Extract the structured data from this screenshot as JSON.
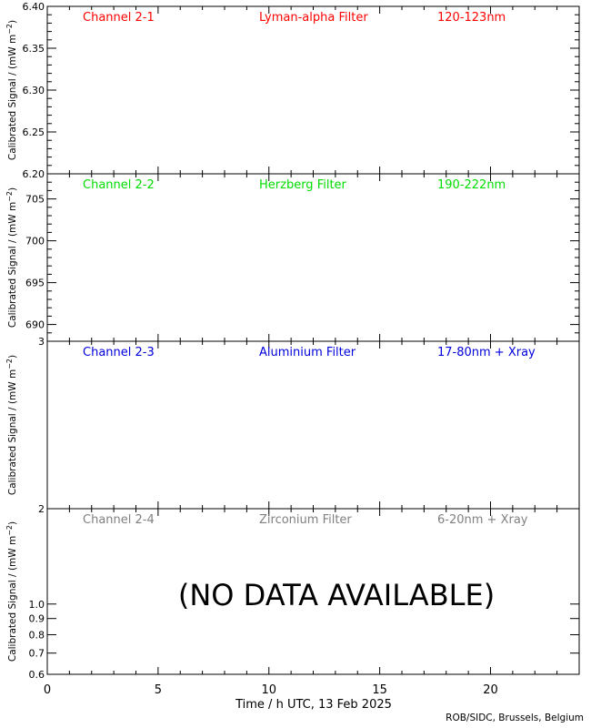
{
  "x_axis": {
    "label": "Time / h UTC, 13 Feb 2025",
    "range": [
      0,
      24
    ],
    "ticks": [
      0,
      5,
      10,
      15,
      20
    ],
    "tick_labels": [
      "0",
      "5",
      "10",
      "15",
      "20"
    ],
    "minor_step": 1
  },
  "y_label": "Calibrated Signal / (mW m",
  "y_label_sup": "−2",
  "y_label_end": ")",
  "credit": "ROB/SIDC, Brussels, Belgium",
  "no_data_text": "(NO DATA AVAILABLE)",
  "chart_data": [
    {
      "type": "line",
      "channel": "Channel 2-1",
      "filter": "Lyman-alpha Filter",
      "band": "120-123nm",
      "color": "#ff0000",
      "ylim": [
        6.2,
        6.4
      ],
      "yscale": "linear",
      "yticks": [
        6.2,
        6.25,
        6.3,
        6.35,
        6.4
      ],
      "ytick_labels": [
        "6.20",
        "6.25",
        "6.30",
        "6.35",
        "6.40"
      ],
      "yminor_step": 0.01,
      "series": []
    },
    {
      "type": "line",
      "channel": "Channel 2-2",
      "filter": "Herzberg Filter",
      "band": "190-222nm",
      "color": "#00dd00",
      "ylim": [
        688,
        708
      ],
      "yscale": "linear",
      "yticks": [
        690,
        695,
        700,
        705
      ],
      "ytick_labels": [
        "690",
        "695",
        "700",
        "705"
      ],
      "yminor_step": 1,
      "series": []
    },
    {
      "type": "line",
      "channel": "Channel 2-3",
      "filter": "Aluminium Filter",
      "band": "17-80nm + Xray",
      "color": "#0000dd",
      "ylim": [
        2,
        3
      ],
      "yscale": "linear",
      "yticks": [
        2,
        3
      ],
      "ytick_labels": [
        "2",
        "3"
      ],
      "yminor_step": 0,
      "series": []
    },
    {
      "type": "line",
      "channel": "Channel 2-4",
      "filter": "Zirconium Filter",
      "band": "6-20nm + Xray",
      "color": "#808080",
      "ylim": [
        0.6,
        2.0
      ],
      "yscale": "log",
      "yticks": [
        0.6,
        0.7,
        0.8,
        0.9,
        1.0
      ],
      "ytick_labels": [
        "0.6",
        "0.7",
        "0.8",
        "0.9",
        "1.0"
      ],
      "yminor_step": 0,
      "no_data": true,
      "series": []
    }
  ]
}
